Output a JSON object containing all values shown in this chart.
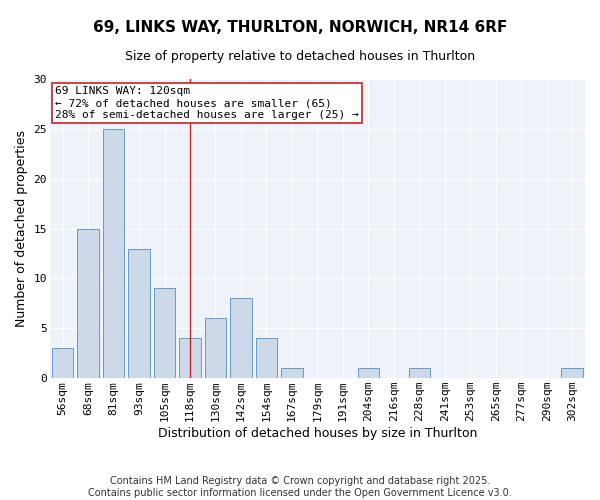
{
  "title_line1": "69, LINKS WAY, THURLTON, NORWICH, NR14 6RF",
  "title_line2": "Size of property relative to detached houses in Thurlton",
  "xlabel": "Distribution of detached houses by size in Thurlton",
  "ylabel": "Number of detached properties",
  "bar_labels": [
    "56sqm",
    "68sqm",
    "81sqm",
    "93sqm",
    "105sqm",
    "118sqm",
    "130sqm",
    "142sqm",
    "154sqm",
    "167sqm",
    "179sqm",
    "191sqm",
    "204sqm",
    "216sqm",
    "228sqm",
    "241sqm",
    "253sqm",
    "265sqm",
    "277sqm",
    "290sqm",
    "302sqm"
  ],
  "bar_values": [
    3,
    15,
    25,
    13,
    9,
    4,
    6,
    8,
    4,
    1,
    0,
    0,
    1,
    0,
    1,
    0,
    0,
    0,
    0,
    0,
    1
  ],
  "bar_color": "#ccd9e8",
  "bar_edgecolor": "#6699cc",
  "fig_background_color": "#ffffff",
  "plot_background_color": "#eef3f9",
  "grid_color": "#ffffff",
  "ylim": [
    0,
    30
  ],
  "yticks": [
    0,
    5,
    10,
    15,
    20,
    25,
    30
  ],
  "ref_line_x": 5.0,
  "annotation_text_line1": "69 LINKS WAY: 120sqm",
  "annotation_text_line2": "← 72% of detached houses are smaller (65)",
  "annotation_text_line3": "28% of semi-detached houses are larger (25) →",
  "annotation_box_color": "#ffffff",
  "annotation_box_edgecolor": "#cc2222",
  "ref_line_color": "#cc2222",
  "footer_line1": "Contains HM Land Registry data © Crown copyright and database right 2025.",
  "footer_line2": "Contains public sector information licensed under the Open Government Licence v3.0.",
  "title_fontsize": 11,
  "subtitle_fontsize": 9,
  "axis_label_fontsize": 9,
  "tick_fontsize": 8,
  "annotation_fontsize": 8,
  "footer_fontsize": 7
}
